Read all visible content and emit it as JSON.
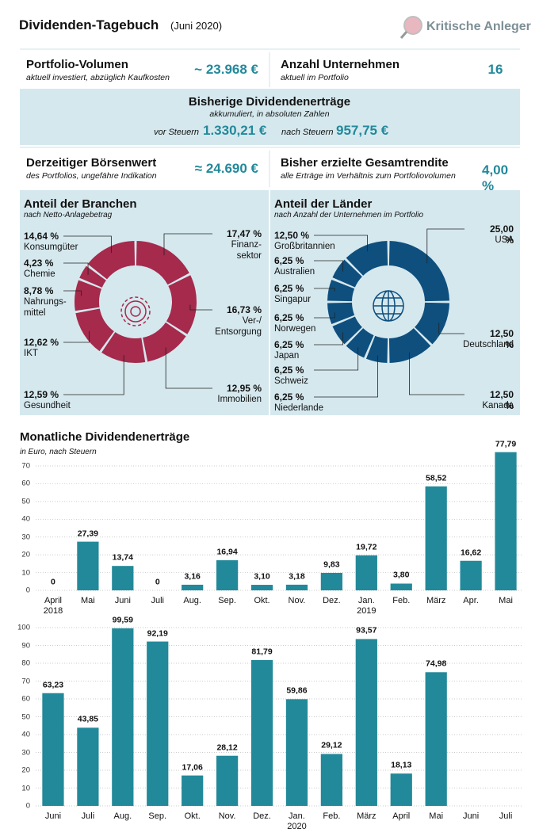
{
  "header": {
    "title": "Dividenden-Tagebuch",
    "subtitle": "(Juni 2020)",
    "logo": "Kritische Anleger"
  },
  "kpis": {
    "volume": {
      "label": "Portfolio-Volumen",
      "note": "aktuell investiert, abzüglich Kaufkosten",
      "value": "~ 23.968 €"
    },
    "companies": {
      "label": "Anzahl Unternehmen",
      "note": "aktuell im Portfolio",
      "value": "16"
    },
    "dividends": {
      "label": "Bisherige Dividendenerträge",
      "note": "akkumuliert, in absoluten Zahlen",
      "before_label": "vor Steuern",
      "before": "1.330,21 €",
      "after_label": "nach Steuern",
      "after": "957,75 €"
    },
    "market_value": {
      "label": "Derzeitiger Börsenwert",
      "note": "des Portfolios, ungefähre Indikation",
      "value": "≈ 24.690 €"
    },
    "return": {
      "label": "Bisher erzielte Gesamtrendite",
      "note": "alle Erträge im Verhältnis zum Portfoliovolumen",
      "value": "4,00 %"
    }
  },
  "chart_data": [
    {
      "type": "pie",
      "title": "Anteil der Branchen",
      "subtitle": "nach Netto-Anlagebetrag",
      "color": "#a52a4c",
      "categories": [
        "Finanz-\nsektor",
        "Ver-/\nEntsorgung",
        "Immobilien",
        "Gesundheit",
        "IKT",
        "Nahrungs-\nmittel",
        "Chemie",
        "Konsumgüter"
      ],
      "values": [
        17.47,
        16.73,
        12.95,
        12.59,
        12.62,
        8.78,
        4.23,
        14.64
      ],
      "value_labels": [
        "17,47 %",
        "16,73 %",
        "12,95 %",
        "12,59 %",
        "12,62 %",
        "8,78 %",
        "4,23 %",
        "14,64 %"
      ]
    },
    {
      "type": "pie",
      "title": "Anteil der Länder",
      "subtitle": "nach Anzahl der Unternehmen im Portfolio",
      "color": "#0e4f7e",
      "categories": [
        "USA",
        "Deutschland",
        "Kanada",
        "Niederlande",
        "Schweiz",
        "Japan",
        "Norwegen",
        "Singapur",
        "Australien",
        "Großbritannien"
      ],
      "values": [
        25,
        12.5,
        12.5,
        6.25,
        6.25,
        6.25,
        6.25,
        6.25,
        6.25,
        12.5
      ],
      "value_labels": [
        "25,00 %",
        "12,50 %",
        "12,50 %",
        "6,25 %",
        "6,25 %",
        "6,25 %",
        "6,25 %",
        "6,25 %",
        "6,25 %",
        "12,50 %"
      ]
    },
    {
      "type": "bar",
      "title": "Monatliche Dividendenerträge",
      "subtitle": "in Euro, nach Steuern",
      "color": "#22899a",
      "categories": [
        "April\n2018",
        "Mai",
        "Juni",
        "Juli",
        "Aug.",
        "Sep.",
        "Okt.",
        "Nov.",
        "Dez.",
        "Jan.\n2019",
        "Feb.",
        "März",
        "Apr.",
        "Mai"
      ],
      "values": [
        0,
        27.39,
        13.74,
        0,
        3.16,
        16.94,
        3.1,
        3.18,
        9.83,
        19.72,
        3.8,
        58.52,
        16.62,
        77.79
      ],
      "value_labels": [
        "0",
        "27,39",
        "13,74",
        "0",
        "3,16",
        "16,94",
        "3,10",
        "3,18",
        "9,83",
        "19,72",
        "3,80",
        "58,52",
        "16,62",
        "77,79"
      ],
      "ylim": [
        0,
        80
      ],
      "yticks": [
        0,
        10,
        20,
        30,
        40,
        50,
        60,
        70
      ],
      "grid": true
    },
    {
      "type": "bar",
      "color": "#22899a",
      "categories": [
        "Juni",
        "Juli",
        "Aug.",
        "Sep.",
        "Okt.",
        "Nov.",
        "Dez.",
        "Jan.\n2020",
        "Feb.",
        "März",
        "April",
        "Mai",
        "Juni",
        "Juli"
      ],
      "values": [
        63.23,
        43.85,
        99.59,
        92.19,
        17.06,
        28.12,
        81.79,
        59.86,
        29.12,
        93.57,
        18.13,
        74.98,
        null,
        null
      ],
      "value_labels": [
        "63,23",
        "43,85",
        "99,59",
        "92,19",
        "17,06",
        "28,12",
        "81,79",
        "59,86",
        "29,12",
        "93,57",
        "18,13",
        "74,98",
        null,
        null
      ],
      "ylim": [
        0,
        100
      ],
      "yticks": [
        0,
        10,
        20,
        30,
        40,
        50,
        60,
        70,
        80,
        90,
        100
      ],
      "grid": true
    }
  ]
}
